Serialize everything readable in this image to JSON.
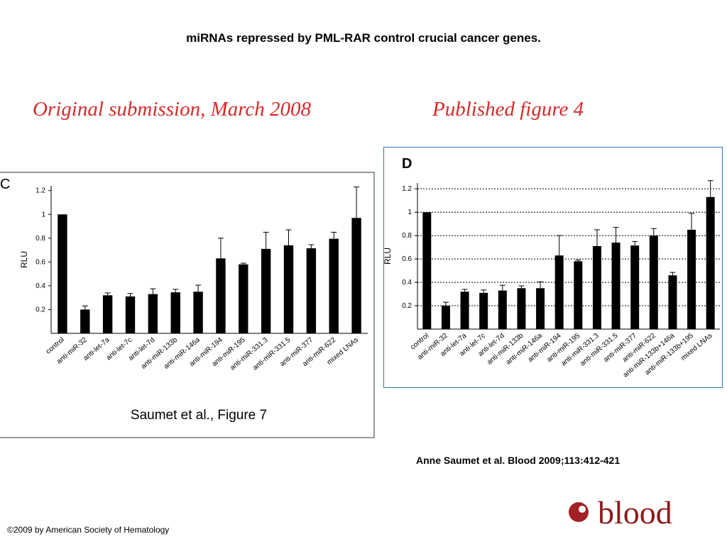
{
  "title": "miRNAs repressed by PML-RAR control crucial cancer genes.",
  "left_heading": "Original submission, March 2008",
  "right_heading": "Published figure 4",
  "citation": "Anne Saumet et al. Blood 2009;113:412-421",
  "copyright": "©2009 by American Society of Hematology",
  "logo": "blood",
  "chart_data": [
    {
      "type": "bar",
      "panel": "C",
      "ylabel": "RLU",
      "caption": "Saumet et al., Figure 7",
      "color": "#000000",
      "grid": false,
      "categories": [
        "control",
        "anti-miR-32",
        "anti-let-7a",
        "anti-let-7c",
        "anti-let-7d",
        "anti-miR-133b",
        "anti-miR-146a",
        "anti-miR-194",
        "anti-miR-195",
        "anti-miR-331.3",
        "anti-miR-331.5",
        "anti-miR-377",
        "anti-miR-622",
        "mixed LNAs"
      ],
      "values": [
        1,
        0.2,
        0.32,
        0.31,
        0.33,
        0.345,
        0.35,
        0.63,
        0.58,
        0.71,
        0.74,
        0.715,
        0.795,
        0.97
      ],
      "errors": [
        0,
        0.03,
        0.02,
        0.025,
        0.045,
        0.025,
        0.055,
        0.17,
        0.01,
        0.14,
        0.13,
        0.03,
        0.055,
        0.26
      ],
      "ylim": [
        0,
        1.24
      ],
      "yticks": [
        0.2,
        0.4,
        0.6,
        0.8,
        1,
        1.2
      ]
    },
    {
      "type": "bar",
      "panel": "D",
      "ylabel": "RLU",
      "color": "#000000",
      "grid": true,
      "categories": [
        "control",
        "anti-miR-32",
        "anti-let-7a",
        "anti-let-7c",
        "anti-let-7d",
        "anti-miR-133b",
        "anti-miR-146a",
        "anti-miR-194",
        "anti-miR-195",
        "anti-miR-331.3",
        "anti-miR-331.5",
        "anti-miR-377",
        "anti-miR-622",
        "anti-miR-133b+146a",
        "anti-miR-133b+195",
        "mixed LNAs"
      ],
      "values": [
        1,
        0.2,
        0.32,
        0.31,
        0.33,
        0.35,
        0.35,
        0.63,
        0.58,
        0.71,
        0.74,
        0.715,
        0.8,
        0.46,
        0.85,
        1.13
      ],
      "errors": [
        0,
        0.03,
        0.02,
        0.025,
        0.045,
        0.02,
        0.055,
        0.17,
        0.01,
        0.14,
        0.13,
        0.035,
        0.06,
        0.025,
        0.14,
        0.14
      ],
      "ylim": [
        0,
        1.25
      ],
      "yticks": [
        0.2,
        0.4,
        0.6,
        0.8,
        1,
        1.2
      ]
    }
  ]
}
